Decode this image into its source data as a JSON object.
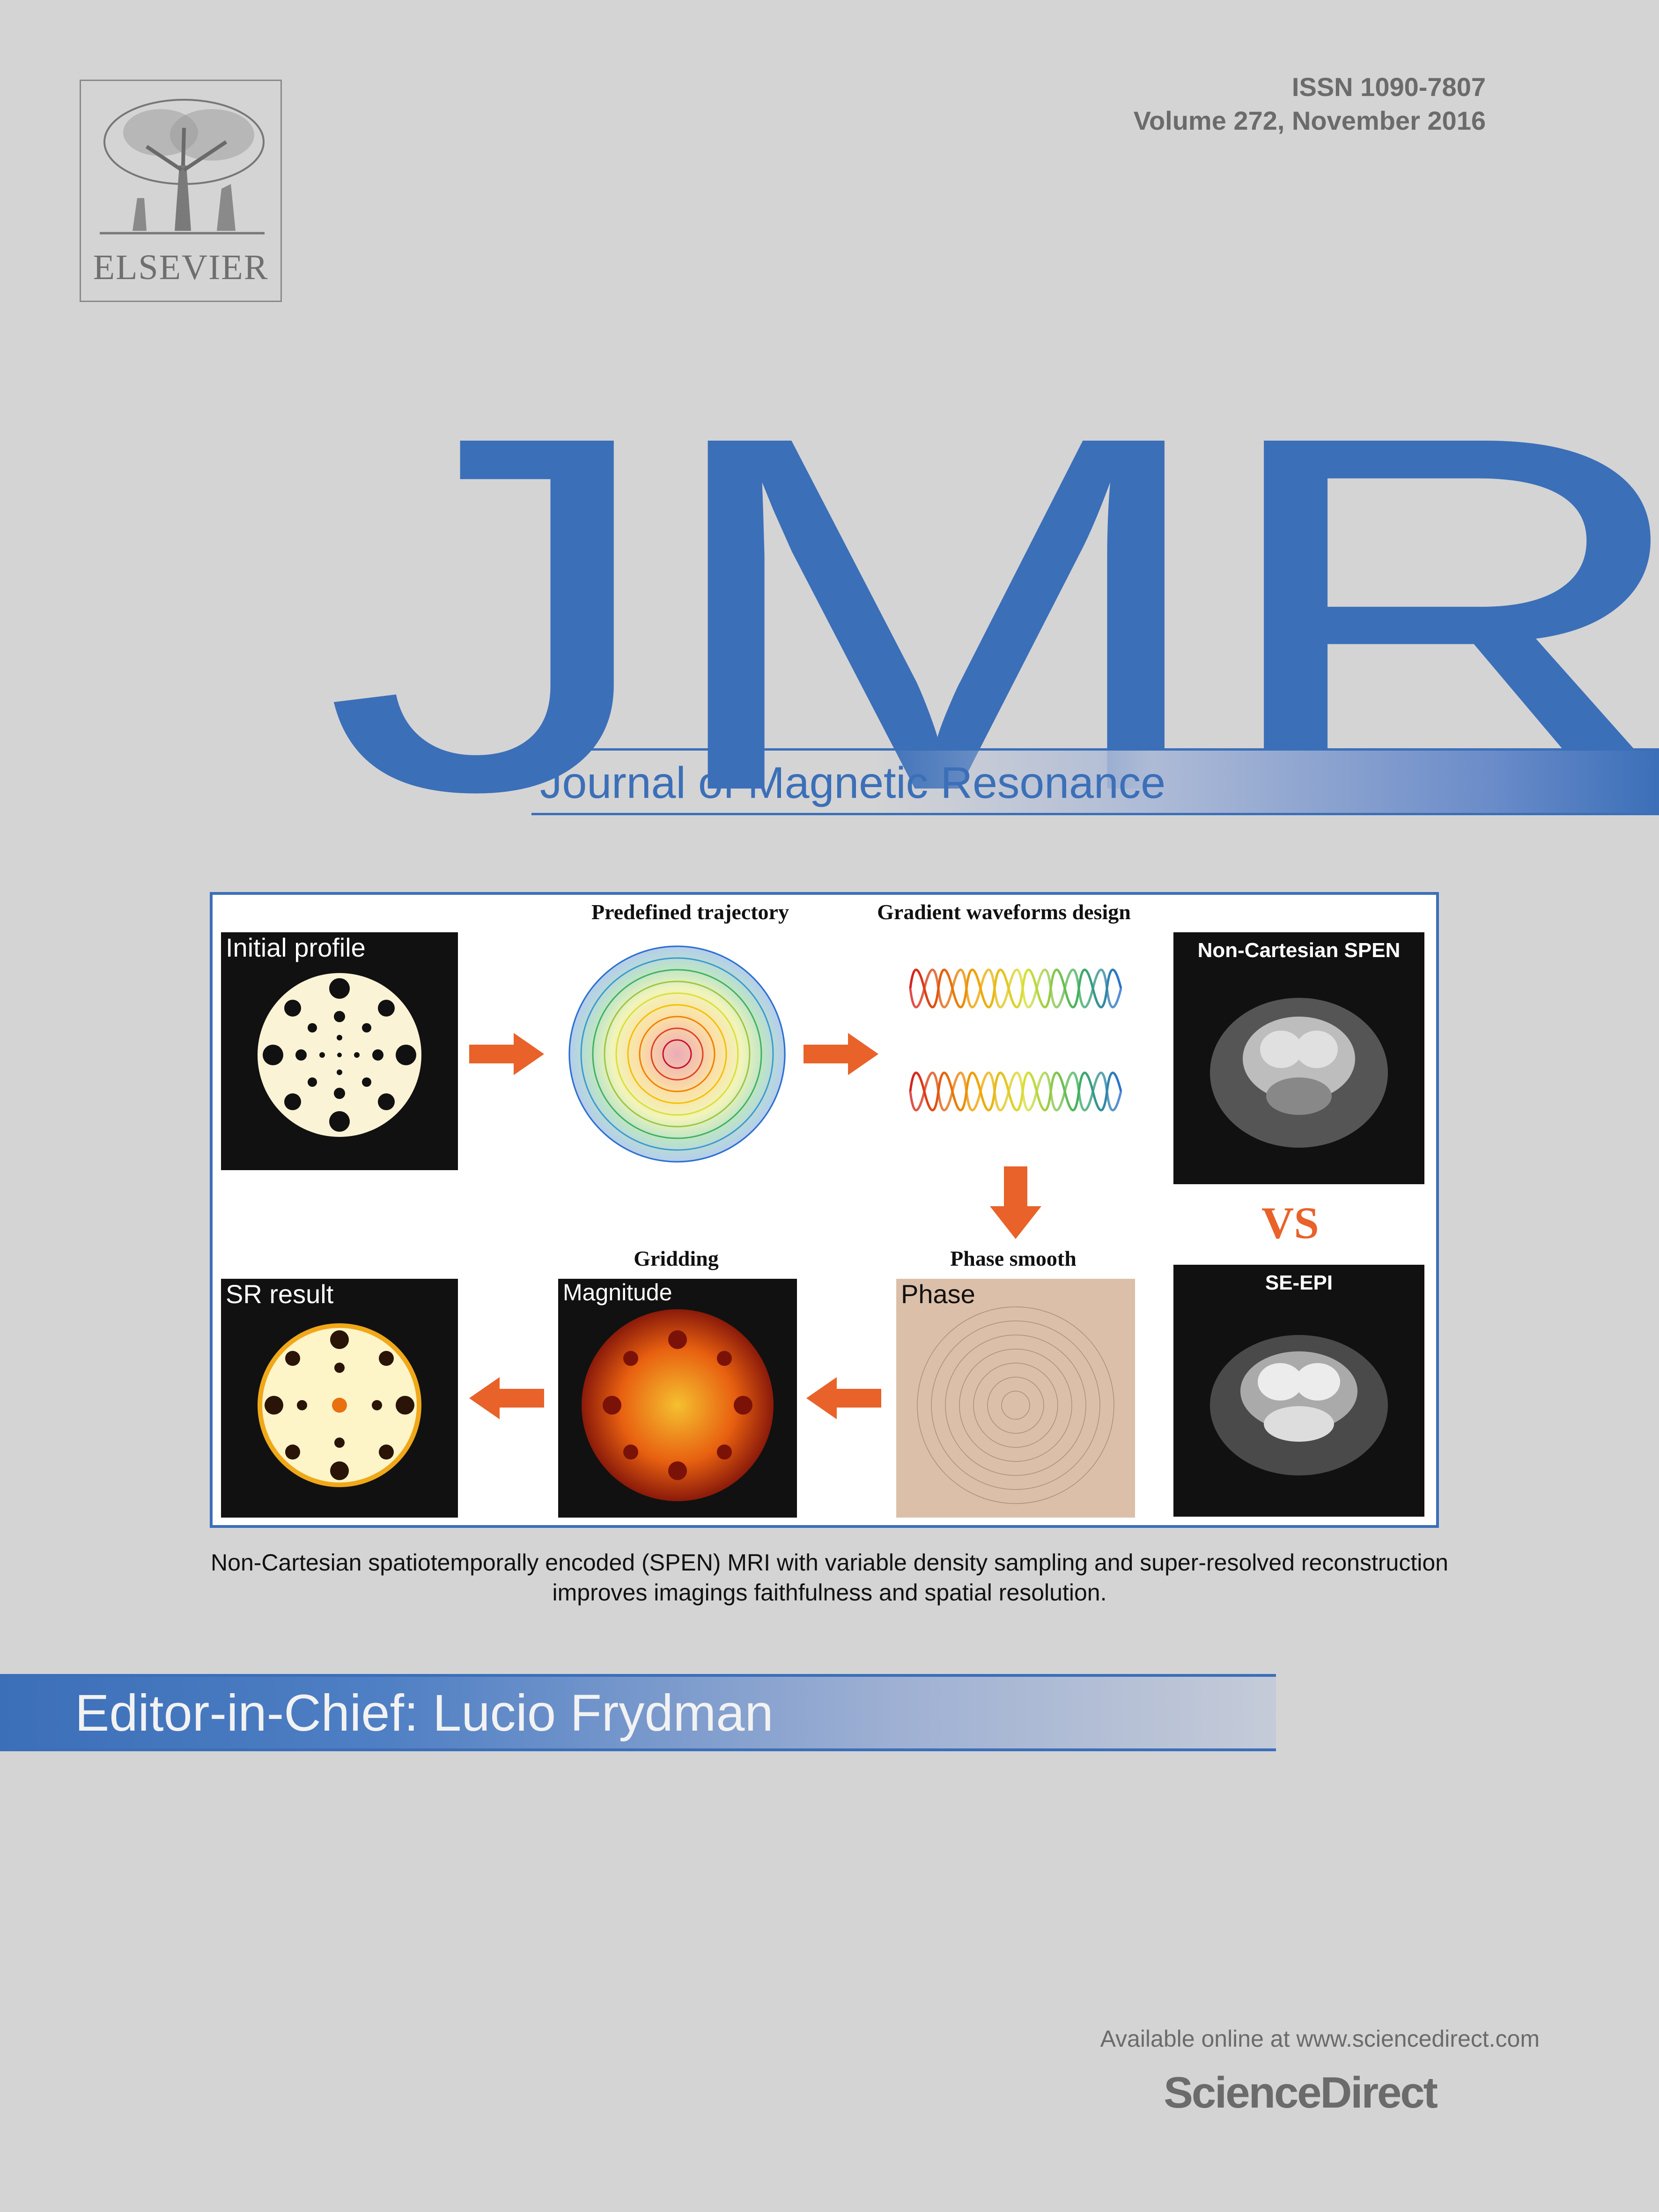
{
  "publisher": {
    "logo_text": "ELSEVIER"
  },
  "issue": {
    "issn": "ISSN 1090-7807",
    "volume": "Volume 272, November 2016"
  },
  "journal": {
    "abbrev": "JMR",
    "name": "Journal of Magnetic Resonance"
  },
  "figure": {
    "initial_profile": "Initial profile",
    "predefined_trajectory": "Predefined trajectory",
    "gradient_waveforms": "Gradient waveforms design",
    "non_cartesian_spen": "Non-Cartesian SPEN",
    "vs": "VS",
    "se_epi": "SE-EPI",
    "phase_smooth": "Phase smooth",
    "phase": "Phase",
    "gridding": "Gridding",
    "magnitude": "Magnitude",
    "sr_result": "SR result"
  },
  "caption": {
    "line1": "Non-Cartesian spatiotemporally encoded (SPEN) MRI with variable density sampling and super-resolved reconstruction",
    "line2": "improves imagings faithfulness and spatial resolution."
  },
  "editor": "Editor-in-Chief: Lucio Frydman",
  "footer": {
    "available": "Available online at www.sciencedirect.com",
    "brand": "ScienceDirect"
  },
  "colors": {
    "accent": "#3b6fb8",
    "arrow": "#e8622a",
    "background": "#d4d4d5"
  }
}
